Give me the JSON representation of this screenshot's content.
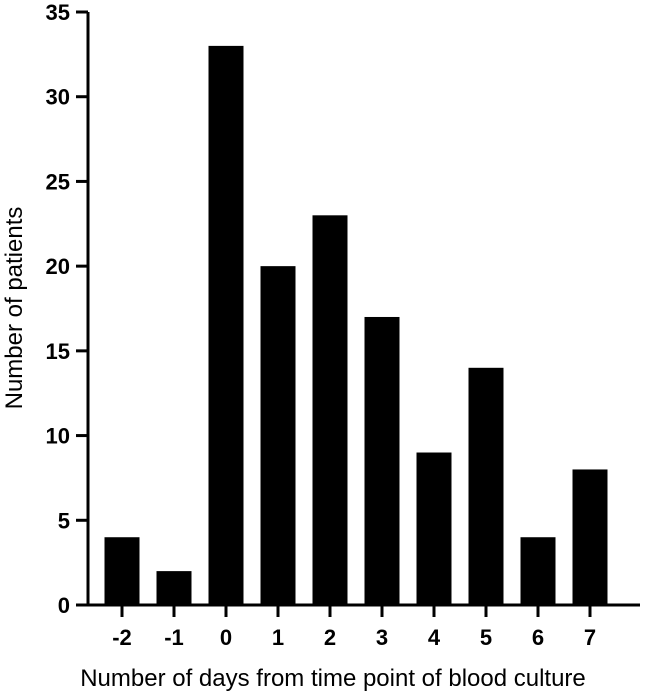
{
  "chart_data": {
    "type": "bar",
    "title": "",
    "xlabel": "Number of days from time point of blood culture",
    "ylabel": "Number of patients",
    "categories": [
      "-2",
      "-1",
      "0",
      "1",
      "2",
      "3",
      "4",
      "5",
      "6",
      "7"
    ],
    "values": [
      4,
      2,
      33,
      20,
      23,
      17,
      9,
      14,
      4,
      8
    ],
    "ylim": [
      0,
      35
    ],
    "yticks": [
      "0",
      "5",
      "10",
      "15",
      "20",
      "25",
      "30",
      "35"
    ],
    "grid": false,
    "legend": "none",
    "bar_color": "#000000"
  }
}
